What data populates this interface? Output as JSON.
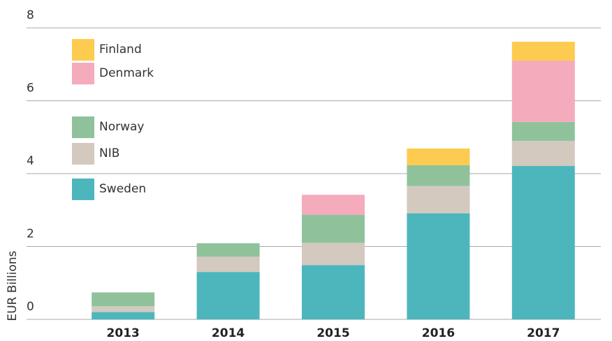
{
  "chart_data": {
    "type": "bar",
    "stacked": true,
    "y_label": "EUR Billions",
    "categories": [
      "2013",
      "2014",
      "2015",
      "2016",
      "2017"
    ],
    "series": [
      {
        "name": "Sweden",
        "color": "#4db6bd",
        "values": [
          0.2,
          1.3,
          1.49,
          2.91,
          4.21
        ]
      },
      {
        "name": "NIB",
        "color": "#d3c9bf",
        "values": [
          0.16,
          0.42,
          0.61,
          0.75,
          0.69
        ]
      },
      {
        "name": "Norway",
        "color": "#8fc29b",
        "values": [
          0.38,
          0.37,
          0.77,
          0.57,
          0.52
        ]
      },
      {
        "name": "Denmark",
        "color": "#f4abbc",
        "values": [
          null,
          null,
          0.55,
          null,
          1.68
        ]
      },
      {
        "name": "Finland",
        "color": "#fdcb50",
        "values": [
          null,
          null,
          null,
          0.46,
          0.52
        ]
      }
    ],
    "ylim": [
      0,
      8
    ],
    "yticks": [
      0,
      2,
      4,
      6,
      8
    ],
    "grid": true
  }
}
